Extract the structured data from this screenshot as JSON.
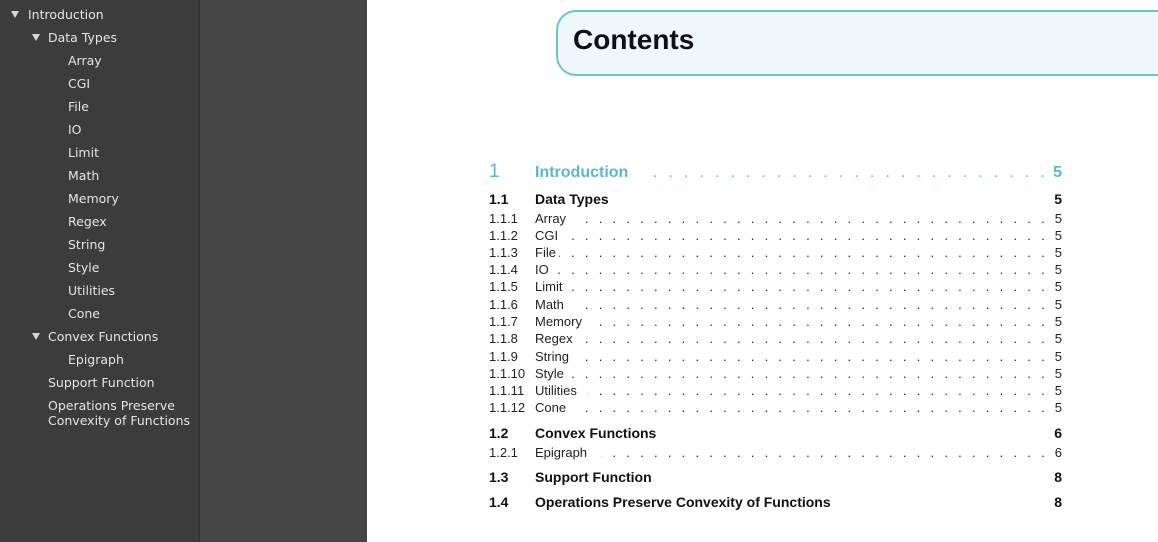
{
  "outline": {
    "items": [
      {
        "label": "Introduction",
        "level": 0,
        "expanded": true
      },
      {
        "label": "Data Types",
        "level": 1,
        "expanded": true
      },
      {
        "label": "Array",
        "level": 2
      },
      {
        "label": "CGI",
        "level": 2
      },
      {
        "label": "File",
        "level": 2
      },
      {
        "label": "IO",
        "level": 2
      },
      {
        "label": "Limit",
        "level": 2
      },
      {
        "label": "Math",
        "level": 2
      },
      {
        "label": "Memory",
        "level": 2
      },
      {
        "label": "Regex",
        "level": 2
      },
      {
        "label": "String",
        "level": 2
      },
      {
        "label": "Style",
        "level": 2
      },
      {
        "label": "Utilities",
        "level": 2
      },
      {
        "label": "Cone",
        "level": 2
      },
      {
        "label": "Convex Functions",
        "level": 1,
        "expanded": true
      },
      {
        "label": "Epigraph",
        "level": 2
      },
      {
        "label": "Support Function",
        "level": 1
      },
      {
        "label": "Operations Preserve Convexity of Functions",
        "level": 1
      }
    ]
  },
  "document": {
    "contents_title": "Contents",
    "accent_color": "#5bb8cc",
    "toc": [
      {
        "num": "1",
        "title": "Introduction",
        "page": "5",
        "kind": "chapter"
      },
      {
        "num": "1.1",
        "title": "Data Types",
        "page": "5",
        "kind": "section"
      },
      {
        "num": "1.1.1",
        "title": "Array",
        "page": "5",
        "kind": "subsection"
      },
      {
        "num": "1.1.2",
        "title": "CGI",
        "page": "5",
        "kind": "subsection"
      },
      {
        "num": "1.1.3",
        "title": "File",
        "page": "5",
        "kind": "subsection"
      },
      {
        "num": "1.1.4",
        "title": "IO",
        "page": "5",
        "kind": "subsection"
      },
      {
        "num": "1.1.5",
        "title": "Limit",
        "page": "5",
        "kind": "subsection"
      },
      {
        "num": "1.1.6",
        "title": "Math",
        "page": "5",
        "kind": "subsection"
      },
      {
        "num": "1.1.7",
        "title": "Memory",
        "page": "5",
        "kind": "subsection"
      },
      {
        "num": "1.1.8",
        "title": "Regex",
        "page": "5",
        "kind": "subsection"
      },
      {
        "num": "1.1.9",
        "title": "String",
        "page": "5",
        "kind": "subsection"
      },
      {
        "num": "1.1.10",
        "title": "Style",
        "page": "5",
        "kind": "subsection"
      },
      {
        "num": "1.1.11",
        "title": "Utilities",
        "page": "5",
        "kind": "subsection"
      },
      {
        "num": "1.1.12",
        "title": "Cone",
        "page": "5",
        "kind": "subsection"
      },
      {
        "num": "1.2",
        "title": "Convex Functions",
        "page": "6",
        "kind": "section"
      },
      {
        "num": "1.2.1",
        "title": "Epigraph",
        "page": "6",
        "kind": "subsection"
      },
      {
        "num": "1.3",
        "title": "Support Function",
        "page": "8",
        "kind": "section"
      },
      {
        "num": "1.4",
        "title": "Operations Preserve Convexity of Functions",
        "page": "8",
        "kind": "section"
      }
    ]
  }
}
